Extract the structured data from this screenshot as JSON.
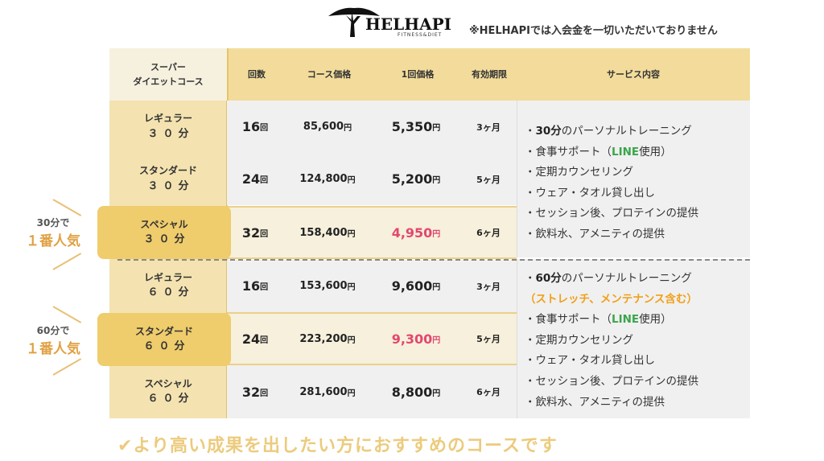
{
  "brand": {
    "name": "HELHAPI",
    "tagline": "FITNESS&DIET"
  },
  "notice": "※HELHAPIでは入会金を一切いただいておりません",
  "header": {
    "course_name": [
      "スーパー",
      "ダイエットコース"
    ],
    "count": "回数",
    "course_price": "コース価格",
    "unit_price": "1回価格",
    "expiry": "有効期限",
    "service": "サービス内容"
  },
  "rows": [
    {
      "name": "レギュラー",
      "dur": "３０分",
      "count": "16",
      "count_unit": "回",
      "price": "85,600",
      "price_unit": "円",
      "unit_price": "5,350",
      "unit_unit": "円",
      "expiry": "3ヶ月"
    },
    {
      "name": "スタンダード",
      "dur": "３０分",
      "count": "24",
      "count_unit": "回",
      "price": "124,800",
      "price_unit": "円",
      "unit_price": "5,200",
      "unit_unit": "円",
      "expiry": "5ヶ月"
    },
    {
      "name": "スペシャル",
      "dur": "３０分",
      "count": "32",
      "count_unit": "回",
      "price": "158,400",
      "price_unit": "円",
      "unit_price": "4,950",
      "unit_unit": "円",
      "expiry": "6ヶ月"
    },
    {
      "name": "レギュラー",
      "dur": "６０分",
      "count": "16",
      "count_unit": "回",
      "price": "153,600",
      "price_unit": "円",
      "unit_price": "9,600",
      "unit_unit": "円",
      "expiry": "3ヶ月"
    },
    {
      "name": "スタンダード",
      "dur": "６０分",
      "count": "24",
      "count_unit": "回",
      "price": "223,200",
      "price_unit": "円",
      "unit_price": "9,300",
      "unit_unit": "円",
      "expiry": "5ヶ月"
    },
    {
      "name": "スペシャル",
      "dur": "６０分",
      "count": "32",
      "count_unit": "回",
      "price": "281,600",
      "price_unit": "円",
      "unit_price": "8,800",
      "unit_unit": "円",
      "expiry": "6ヶ月"
    }
  ],
  "services30": {
    "l1_bold": "30分",
    "l1_rest": "のパーソナルトレーニング",
    "l2_a": "食事サポート（",
    "l2_green": "LINE",
    "l2_b": "使用）",
    "l3": "定期カウンセリング",
    "l4": "ウェア・タオル貸し出し",
    "l5": "セッション後、プロテインの提供",
    "l6": "飲料水、アメニティの提供"
  },
  "services60": {
    "l1_bold": "60分",
    "l1_rest": "のパーソナルトレーニング",
    "l2_open": "（",
    "l2_orange": "ストレッチ、メンテナンス含む",
    "l2_close": "）",
    "l3_a": "食事サポート（",
    "l3_green": "LINE",
    "l3_b": "使用）",
    "l4": "定期カウンセリング",
    "l5": "ウェア・タオル貸し出し",
    "l6": "セッション後、プロテインの提供",
    "l7": "飲料水、アメニティの提供"
  },
  "popular30": {
    "t1": "30分で",
    "t2": "１番人気"
  },
  "popular60": {
    "t1": "60分で",
    "t2": "１番人気"
  },
  "footer": "✔より高い成果を出したい方におすすめのコースです",
  "colors": {
    "gold": "#f3dc9b",
    "pink": "#e3476e",
    "green": "#3aa64a",
    "orange": "#f0a019"
  }
}
